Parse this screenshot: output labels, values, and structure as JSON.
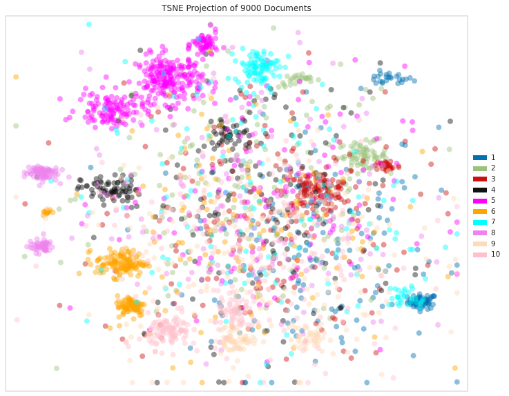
{
  "chart_data": {
    "type": "scatter",
    "title": "TSNE Projection of 9000 Documents",
    "xlabel": "",
    "ylabel": "",
    "grid": false,
    "legend_position": "right",
    "point_count": 9000,
    "series": [
      {
        "name": "1",
        "color": "#0072B2",
        "clusters": [
          {
            "cx": 0.885,
            "cy": -0.575,
            "sx": 0.035,
            "sy": 0.022,
            "n": 60
          },
          {
            "cx": 0.72,
            "cy": 0.73,
            "sx": 0.06,
            "sy": 0.02,
            "n": 25
          },
          {
            "cx": 0.35,
            "cy": -0.25,
            "sx": 0.3,
            "sy": 0.4,
            "n": 160
          }
        ]
      },
      {
        "name": "2",
        "color": "#9BC47A",
        "clusters": [
          {
            "cx": 0.6,
            "cy": 0.28,
            "sx": 0.06,
            "sy": 0.04,
            "n": 70
          },
          {
            "cx": 0.3,
            "cy": 0.72,
            "sx": 0.05,
            "sy": 0.02,
            "n": 25
          },
          {
            "cx": 0.05,
            "cy": 0.05,
            "sx": 0.4,
            "sy": 0.4,
            "n": 150
          }
        ]
      },
      {
        "name": "3",
        "color": "#CC1111",
        "clusters": [
          {
            "cx": 0.38,
            "cy": 0.07,
            "sx": 0.08,
            "sy": 0.06,
            "n": 120
          },
          {
            "cx": 0.72,
            "cy": 0.22,
            "sx": 0.03,
            "sy": 0.02,
            "n": 30
          },
          {
            "cx": 0.1,
            "cy": -0.1,
            "sx": 0.38,
            "sy": 0.42,
            "n": 170
          }
        ]
      },
      {
        "name": "4",
        "color": "#111111",
        "clusters": [
          {
            "cx": -0.6,
            "cy": 0.08,
            "sx": 0.07,
            "sy": 0.04,
            "n": 70
          },
          {
            "cx": -0.02,
            "cy": 0.4,
            "sx": 0.06,
            "sy": 0.05,
            "n": 40
          },
          {
            "cx": 0.1,
            "cy": 0.0,
            "sx": 0.35,
            "sy": 0.4,
            "n": 140
          }
        ]
      },
      {
        "name": "5",
        "color": "#FF00FF",
        "clusters": [
          {
            "cx": -0.32,
            "cy": 0.73,
            "sx": 0.08,
            "sy": 0.07,
            "n": 210
          },
          {
            "cx": -0.15,
            "cy": 0.93,
            "sx": 0.03,
            "sy": 0.04,
            "n": 60
          },
          {
            "cx": -0.6,
            "cy": 0.55,
            "sx": 0.08,
            "sy": 0.05,
            "n": 110
          },
          {
            "cx": 0.1,
            "cy": 0.0,
            "sx": 0.35,
            "sy": 0.4,
            "n": 120
          }
        ]
      },
      {
        "name": "6",
        "color": "#FFA500",
        "clusters": [
          {
            "cx": -0.55,
            "cy": -0.35,
            "sx": 0.06,
            "sy": 0.04,
            "n": 130
          },
          {
            "cx": -0.5,
            "cy": -0.6,
            "sx": 0.035,
            "sy": 0.03,
            "n": 80
          },
          {
            "cx": -0.9,
            "cy": -0.05,
            "sx": 0.012,
            "sy": 0.01,
            "n": 15
          },
          {
            "cx": 0.05,
            "cy": -0.1,
            "sx": 0.35,
            "sy": 0.4,
            "n": 120
          }
        ]
      },
      {
        "name": "7",
        "color": "#00FFFF",
        "clusters": [
          {
            "cx": 0.1,
            "cy": 0.8,
            "sx": 0.05,
            "sy": 0.05,
            "n": 90
          },
          {
            "cx": 0.82,
            "cy": -0.55,
            "sx": 0.05,
            "sy": 0.04,
            "n": 30
          },
          {
            "cx": 0.05,
            "cy": 0.0,
            "sx": 0.38,
            "sy": 0.42,
            "n": 130
          }
        ]
      },
      {
        "name": "8",
        "color": "#EE82EE",
        "clusters": [
          {
            "cx": -0.93,
            "cy": 0.18,
            "sx": 0.04,
            "sy": 0.025,
            "n": 80
          },
          {
            "cx": -0.93,
            "cy": -0.25,
            "sx": 0.03,
            "sy": 0.02,
            "n": 50
          },
          {
            "cx": 0.05,
            "cy": 0.0,
            "sx": 0.38,
            "sy": 0.42,
            "n": 140
          }
        ]
      },
      {
        "name": "9",
        "color": "#FFDAB9",
        "clusters": [
          {
            "cx": 0.0,
            "cy": -0.8,
            "sx": 0.05,
            "sy": 0.04,
            "n": 60
          },
          {
            "cx": 0.35,
            "cy": -0.78,
            "sx": 0.05,
            "sy": 0.04,
            "n": 40
          },
          {
            "cx": 0.05,
            "cy": -0.3,
            "sx": 0.4,
            "sy": 0.38,
            "n": 190
          }
        ]
      },
      {
        "name": "10",
        "color": "#FFC0CB",
        "clusters": [
          {
            "cx": -0.32,
            "cy": -0.75,
            "sx": 0.05,
            "sy": 0.05,
            "n": 90
          },
          {
            "cx": 0.0,
            "cy": -0.65,
            "sx": 0.05,
            "sy": 0.05,
            "n": 60
          },
          {
            "cx": 0.05,
            "cy": -0.25,
            "sx": 0.4,
            "sy": 0.38,
            "n": 170
          }
        ]
      }
    ],
    "xlim": [
      -1.1,
      1.1
    ],
    "ylim": [
      -1.1,
      1.1
    ]
  }
}
